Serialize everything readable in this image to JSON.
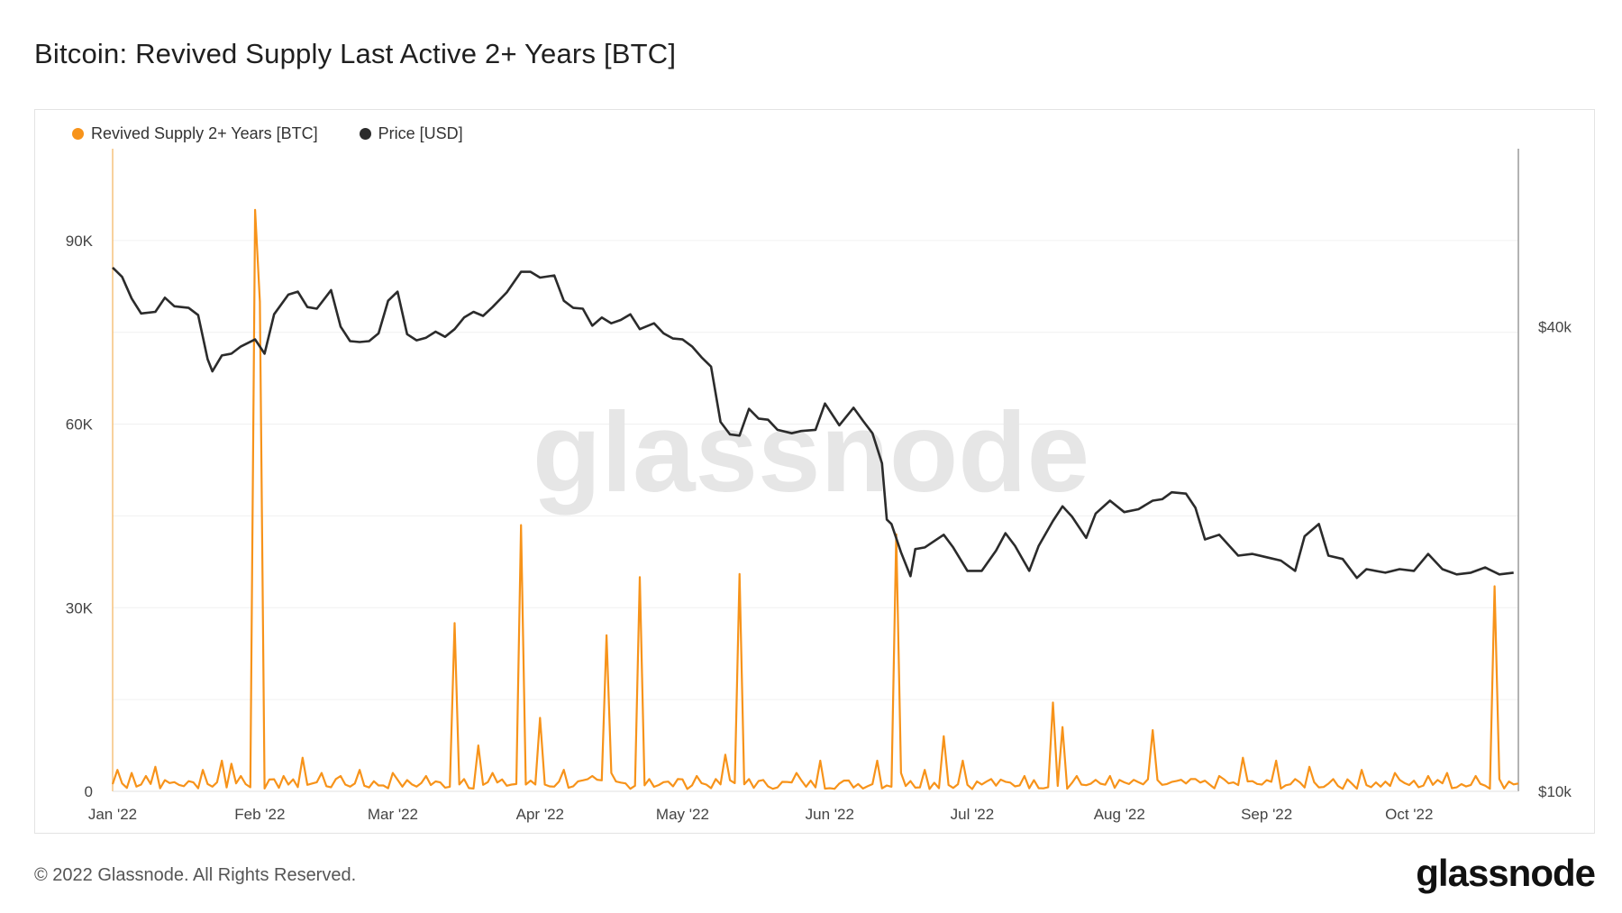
{
  "header": {
    "title": "Bitcoin: Revived Supply Last Active 2+ Years [BTC]"
  },
  "legend": [
    {
      "label": "Revived Supply 2+ Years [BTC]",
      "color": "#f7931a"
    },
    {
      "label": "Price [USD]",
      "color": "#2b2b2b"
    }
  ],
  "footer": {
    "copyright": "© 2022 Glassnode. All Rights Reserved.",
    "brand": "glassnode"
  },
  "watermark": "glassnode",
  "chart_data": {
    "type": "line",
    "x_tick_labels": [
      "Jan '22",
      "Feb '22",
      "Mar '22",
      "Apr '22",
      "May '22",
      "Jun '22",
      "Jul '22",
      "Aug '22",
      "Sep '22",
      "Oct '22"
    ],
    "x_tick_dates": [
      "2022-01-01",
      "2022-02-01",
      "2022-03-01",
      "2022-04-01",
      "2022-05-01",
      "2022-06-01",
      "2022-07-01",
      "2022-08-01",
      "2022-09-01",
      "2022-10-01"
    ],
    "x_range": [
      "2022-01-01",
      "2022-10-24"
    ],
    "y_left": {
      "ticks": [
        0,
        30000,
        60000,
        90000
      ],
      "tick_labels": [
        "0",
        "30K",
        "60K",
        "90K"
      ],
      "range": [
        0,
        105000
      ]
    },
    "y_right": {
      "scale": "log",
      "ticks": [
        10000,
        40000
      ],
      "tick_labels": [
        "$10k",
        "$40k"
      ],
      "range": [
        10000,
        68000
      ]
    },
    "grid": true,
    "legend_position": "top-left",
    "series": [
      {
        "name": "Revived Supply 2+ Years [BTC]",
        "axis": "left",
        "color": "#f7931a",
        "baseline": 1500,
        "points": [
          [
            "2022-01-02",
            3500
          ],
          [
            "2022-01-05",
            3000
          ],
          [
            "2022-01-08",
            2500
          ],
          [
            "2022-01-10",
            4000
          ],
          [
            "2022-01-14",
            1500
          ],
          [
            "2022-01-20",
            3500
          ],
          [
            "2022-01-24",
            5000
          ],
          [
            "2022-01-26",
            4500
          ],
          [
            "2022-01-28",
            2500
          ],
          [
            "2022-01-31",
            95000
          ],
          [
            "2022-02-01",
            80000
          ],
          [
            "2022-02-06",
            2500
          ],
          [
            "2022-02-10",
            5500
          ],
          [
            "2022-02-14",
            3000
          ],
          [
            "2022-02-18",
            2500
          ],
          [
            "2022-02-22",
            3500
          ],
          [
            "2022-03-01",
            3000
          ],
          [
            "2022-03-08",
            2500
          ],
          [
            "2022-03-14",
            27500
          ],
          [
            "2022-03-16",
            2000
          ],
          [
            "2022-03-19",
            7500
          ],
          [
            "2022-03-22",
            3000
          ],
          [
            "2022-03-28",
            43500
          ],
          [
            "2022-04-01",
            12000
          ],
          [
            "2022-04-06",
            3500
          ],
          [
            "2022-04-12",
            2500
          ],
          [
            "2022-04-15",
            25500
          ],
          [
            "2022-04-16",
            3000
          ],
          [
            "2022-04-22",
            35000
          ],
          [
            "2022-04-24",
            2000
          ],
          [
            "2022-04-30",
            2000
          ],
          [
            "2022-05-04",
            2500
          ],
          [
            "2022-05-10",
            6000
          ],
          [
            "2022-05-13",
            35500
          ],
          [
            "2022-05-15",
            2000
          ],
          [
            "2022-05-25",
            3000
          ],
          [
            "2022-05-30",
            5000
          ],
          [
            "2022-06-11",
            5000
          ],
          [
            "2022-06-15",
            42000
          ],
          [
            "2022-06-16",
            3000
          ],
          [
            "2022-06-21",
            3500
          ],
          [
            "2022-06-25",
            9000
          ],
          [
            "2022-06-29",
            5000
          ],
          [
            "2022-07-05",
            2000
          ],
          [
            "2022-07-12",
            2500
          ],
          [
            "2022-07-18",
            14500
          ],
          [
            "2022-07-20",
            10500
          ],
          [
            "2022-07-23",
            2500
          ],
          [
            "2022-07-30",
            2500
          ],
          [
            "2022-08-08",
            10000
          ],
          [
            "2022-08-16",
            2000
          ],
          [
            "2022-08-22",
            2500
          ],
          [
            "2022-08-27",
            5500
          ],
          [
            "2022-09-03",
            5000
          ],
          [
            "2022-09-10",
            4000
          ],
          [
            "2022-09-15",
            2000
          ],
          [
            "2022-09-21",
            3500
          ],
          [
            "2022-09-28",
            3000
          ],
          [
            "2022-10-05",
            2500
          ],
          [
            "2022-10-09",
            3000
          ],
          [
            "2022-10-15",
            2500
          ],
          [
            "2022-10-19",
            33500
          ],
          [
            "2022-10-20",
            2000
          ]
        ]
      },
      {
        "name": "Price [USD]",
        "axis": "right",
        "color": "#2b2b2b",
        "points": [
          [
            "2022-01-01",
            47700
          ],
          [
            "2022-01-03",
            46400
          ],
          [
            "2022-01-05",
            43500
          ],
          [
            "2022-01-07",
            41600
          ],
          [
            "2022-01-10",
            41800
          ],
          [
            "2022-01-12",
            43600
          ],
          [
            "2022-01-14",
            42500
          ],
          [
            "2022-01-17",
            42300
          ],
          [
            "2022-01-19",
            41400
          ],
          [
            "2022-01-21",
            36300
          ],
          [
            "2022-01-22",
            35000
          ],
          [
            "2022-01-24",
            36700
          ],
          [
            "2022-01-26",
            36900
          ],
          [
            "2022-01-28",
            37700
          ],
          [
            "2022-01-31",
            38500
          ],
          [
            "2022-02-02",
            36900
          ],
          [
            "2022-02-04",
            41500
          ],
          [
            "2022-02-07",
            44000
          ],
          [
            "2022-02-09",
            44400
          ],
          [
            "2022-02-11",
            42400
          ],
          [
            "2022-02-13",
            42200
          ],
          [
            "2022-02-16",
            44600
          ],
          [
            "2022-02-18",
            40000
          ],
          [
            "2022-02-20",
            38300
          ],
          [
            "2022-02-22",
            38200
          ],
          [
            "2022-02-24",
            38300
          ],
          [
            "2022-02-26",
            39200
          ],
          [
            "2022-02-28",
            43200
          ],
          [
            "2022-03-02",
            44400
          ],
          [
            "2022-03-04",
            39100
          ],
          [
            "2022-03-06",
            38400
          ],
          [
            "2022-03-08",
            38700
          ],
          [
            "2022-03-10",
            39400
          ],
          [
            "2022-03-12",
            38800
          ],
          [
            "2022-03-14",
            39700
          ],
          [
            "2022-03-16",
            41100
          ],
          [
            "2022-03-18",
            41800
          ],
          [
            "2022-03-20",
            41300
          ],
          [
            "2022-03-22",
            42400
          ],
          [
            "2022-03-25",
            44300
          ],
          [
            "2022-03-28",
            47100
          ],
          [
            "2022-03-30",
            47100
          ],
          [
            "2022-04-01",
            46300
          ],
          [
            "2022-04-04",
            46600
          ],
          [
            "2022-04-06",
            43200
          ],
          [
            "2022-04-08",
            42300
          ],
          [
            "2022-04-10",
            42200
          ],
          [
            "2022-04-12",
            40100
          ],
          [
            "2022-04-14",
            41100
          ],
          [
            "2022-04-16",
            40400
          ],
          [
            "2022-04-18",
            40800
          ],
          [
            "2022-04-20",
            41500
          ],
          [
            "2022-04-22",
            39700
          ],
          [
            "2022-04-25",
            40400
          ],
          [
            "2022-04-27",
            39200
          ],
          [
            "2022-04-29",
            38600
          ],
          [
            "2022-05-01",
            38500
          ],
          [
            "2022-05-03",
            37700
          ],
          [
            "2022-05-05",
            36500
          ],
          [
            "2022-05-07",
            35500
          ],
          [
            "2022-05-09",
            30100
          ],
          [
            "2022-05-11",
            29000
          ],
          [
            "2022-05-13",
            28900
          ],
          [
            "2022-05-15",
            31300
          ],
          [
            "2022-05-17",
            30400
          ],
          [
            "2022-05-19",
            30300
          ],
          [
            "2022-05-21",
            29400
          ],
          [
            "2022-05-24",
            29100
          ],
          [
            "2022-05-26",
            29300
          ],
          [
            "2022-05-29",
            29400
          ],
          [
            "2022-05-31",
            31800
          ],
          [
            "2022-06-03",
            29800
          ],
          [
            "2022-06-06",
            31400
          ],
          [
            "2022-06-08",
            30200
          ],
          [
            "2022-06-10",
            29100
          ],
          [
            "2022-06-12",
            26600
          ],
          [
            "2022-06-13",
            22500
          ],
          [
            "2022-06-14",
            22200
          ],
          [
            "2022-06-16",
            20400
          ],
          [
            "2022-06-18",
            19000
          ],
          [
            "2022-06-19",
            20600
          ],
          [
            "2022-06-21",
            20700
          ],
          [
            "2022-06-23",
            21100
          ],
          [
            "2022-06-25",
            21500
          ],
          [
            "2022-06-27",
            20700
          ],
          [
            "2022-06-30",
            19300
          ],
          [
            "2022-07-03",
            19300
          ],
          [
            "2022-07-06",
            20500
          ],
          [
            "2022-07-08",
            21600
          ],
          [
            "2022-07-10",
            20800
          ],
          [
            "2022-07-13",
            19300
          ],
          [
            "2022-07-15",
            20800
          ],
          [
            "2022-07-18",
            22400
          ],
          [
            "2022-07-20",
            23400
          ],
          [
            "2022-07-22",
            22700
          ],
          [
            "2022-07-25",
            21300
          ],
          [
            "2022-07-27",
            22900
          ],
          [
            "2022-07-30",
            23800
          ],
          [
            "2022-08-02",
            23000
          ],
          [
            "2022-08-05",
            23200
          ],
          [
            "2022-08-08",
            23800
          ],
          [
            "2022-08-10",
            23900
          ],
          [
            "2022-08-12",
            24400
          ],
          [
            "2022-08-15",
            24300
          ],
          [
            "2022-08-17",
            23300
          ],
          [
            "2022-08-19",
            21200
          ],
          [
            "2022-08-22",
            21500
          ],
          [
            "2022-08-26",
            20200
          ],
          [
            "2022-08-29",
            20300
          ],
          [
            "2022-09-01",
            20100
          ],
          [
            "2022-09-04",
            19900
          ],
          [
            "2022-09-07",
            19300
          ],
          [
            "2022-09-09",
            21400
          ],
          [
            "2022-09-12",
            22200
          ],
          [
            "2022-09-14",
            20200
          ],
          [
            "2022-09-17",
            20000
          ],
          [
            "2022-09-20",
            18900
          ],
          [
            "2022-09-22",
            19400
          ],
          [
            "2022-09-26",
            19200
          ],
          [
            "2022-09-29",
            19400
          ],
          [
            "2022-10-02",
            19300
          ],
          [
            "2022-10-05",
            20300
          ],
          [
            "2022-10-08",
            19400
          ],
          [
            "2022-10-11",
            19100
          ],
          [
            "2022-10-14",
            19200
          ],
          [
            "2022-10-17",
            19500
          ],
          [
            "2022-10-20",
            19100
          ],
          [
            "2022-10-23",
            19200
          ]
        ]
      }
    ]
  }
}
